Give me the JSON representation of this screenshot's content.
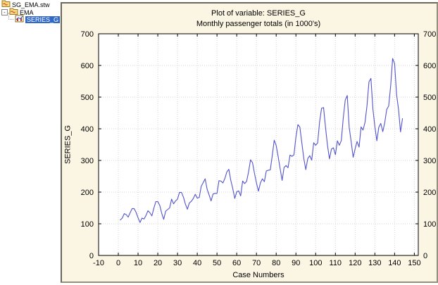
{
  "tree": {
    "items": [
      {
        "label": "SG_EMA.stw",
        "icon": "workbook-icon",
        "selected": false
      },
      {
        "label": "EMA",
        "icon": "folder-icon",
        "selected": false,
        "expander": "-"
      },
      {
        "label": "SERIES_G",
        "icon": "graph-icon",
        "selected": true
      }
    ],
    "selection_color": "#316ac5"
  },
  "window": {
    "background": "#fbf5e3",
    "plot_background": "#ffffff"
  },
  "chart_data": {
    "type": "line",
    "title": "Plot of variable: SERIES_G",
    "subtitle": "Monthly passenger totals (in 1000's)",
    "xlabel": "Case Numbers",
    "ylabel": "SERIES_G",
    "xlim": [
      -10,
      152
    ],
    "ylim": [
      0,
      700
    ],
    "xticks": [
      -10,
      0,
      10,
      20,
      30,
      40,
      50,
      60,
      70,
      80,
      90,
      100,
      110,
      120,
      130,
      140,
      150
    ],
    "yticks": [
      0,
      100,
      200,
      300,
      400,
      500,
      600,
      700
    ],
    "grid": true,
    "legend": "none",
    "line_color": "#5353cd",
    "grid_color": "#d4d4d4",
    "plot_bg": "#ffffff",
    "x_range": [
      1,
      144
    ],
    "values": [
      112,
      118,
      132,
      129,
      121,
      135,
      148,
      148,
      136,
      119,
      104,
      118,
      115,
      126,
      141,
      135,
      125,
      149,
      170,
      170,
      158,
      133,
      114,
      140,
      145,
      150,
      178,
      163,
      172,
      178,
      199,
      199,
      184,
      162,
      146,
      166,
      171,
      180,
      193,
      181,
      183,
      218,
      230,
      242,
      209,
      191,
      172,
      194,
      196,
      196,
      236,
      235,
      229,
      243,
      264,
      272,
      237,
      211,
      180,
      201,
      204,
      188,
      235,
      227,
      234,
      264,
      302,
      293,
      259,
      229,
      203,
      229,
      242,
      233,
      267,
      269,
      270,
      315,
      364,
      347,
      312,
      274,
      237,
      278,
      284,
      277,
      317,
      313,
      318,
      374,
      413,
      405,
      355,
      306,
      271,
      306,
      315,
      301,
      356,
      348,
      355,
      422,
      465,
      467,
      404,
      347,
      305,
      336,
      340,
      318,
      362,
      348,
      363,
      435,
      491,
      505,
      404,
      359,
      310,
      337,
      360,
      342,
      406,
      396,
      420,
      472,
      548,
      559,
      463,
      407,
      362,
      405,
      417,
      391,
      419,
      461,
      472,
      535,
      622,
      606,
      508,
      461,
      390,
      432
    ]
  }
}
